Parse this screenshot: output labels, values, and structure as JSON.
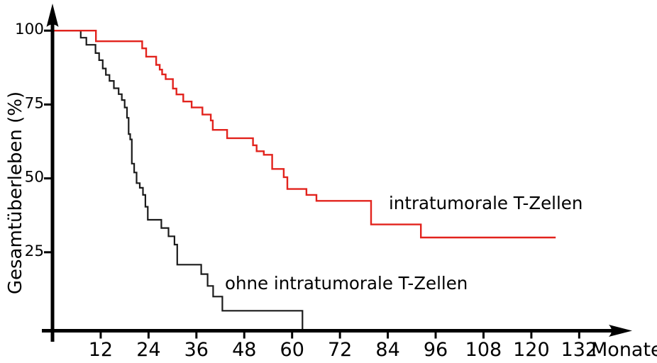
{
  "figure": {
    "background": "#ffffff",
    "axis_color": "#000000",
    "accent_red": "#e2231d"
  },
  "chart_data": {
    "type": "line",
    "subtype": "kaplan-meier-step-survival",
    "title": "",
    "xlabel": "Monate",
    "ylabel": "Gesamtüberleben (%)",
    "xlim": [
      0,
      145
    ],
    "ylim": [
      0,
      105
    ],
    "grid": false,
    "legend_position": "inline-text-annotations",
    "x_ticks": [
      12,
      24,
      36,
      48,
      60,
      72,
      84,
      96,
      108,
      120,
      132
    ],
    "y_ticks": [
      100,
      75,
      50,
      25
    ],
    "series": [
      {
        "name": "ohne intratumorale T-Zellen",
        "color": "#1b1b1b",
        "start": [
          0,
          100
        ],
        "end_month": 62.6,
        "drops": [
          [
            7.0,
            97.6
          ],
          [
            8.4,
            95.2
          ],
          [
            10.7,
            92.4
          ],
          [
            11.6,
            90.0
          ],
          [
            12.5,
            87.2
          ],
          [
            13.3,
            85.0
          ],
          [
            14.2,
            83.0
          ],
          [
            15.3,
            80.5
          ],
          [
            16.5,
            78.5
          ],
          [
            17.3,
            76.5
          ],
          [
            18.0,
            74.0
          ],
          [
            18.6,
            70.5
          ],
          [
            19.0,
            65.0
          ],
          [
            19.4,
            63.2
          ],
          [
            19.8,
            55.0
          ],
          [
            20.4,
            52.0
          ],
          [
            21.0,
            48.4
          ],
          [
            21.8,
            46.8
          ],
          [
            22.6,
            44.4
          ],
          [
            23.2,
            40.4
          ],
          [
            23.8,
            36.0
          ],
          [
            27.2,
            33.2
          ],
          [
            29.0,
            30.4
          ],
          [
            30.5,
            27.6
          ],
          [
            31.2,
            20.8
          ],
          [
            37.2,
            17.6
          ],
          [
            38.8,
            13.6
          ],
          [
            40.2,
            10.0
          ],
          [
            42.5,
            5.2
          ],
          [
            62.6,
            0.0
          ]
        ]
      },
      {
        "name": "intratumorale T-Zellen",
        "color": "#e2231d",
        "start": [
          0,
          100
        ],
        "end_month": 126.1,
        "drops": [
          [
            10.8,
            96.4
          ],
          [
            22.4,
            94.0
          ],
          [
            23.4,
            91.2
          ],
          [
            25.9,
            88.4
          ],
          [
            26.8,
            86.8
          ],
          [
            27.4,
            85.2
          ],
          [
            28.3,
            83.6
          ],
          [
            30.1,
            80.4
          ],
          [
            31.0,
            78.4
          ],
          [
            32.7,
            76.0
          ],
          [
            34.8,
            74.0
          ],
          [
            37.5,
            71.6
          ],
          [
            39.6,
            69.6
          ],
          [
            40.1,
            66.4
          ],
          [
            43.7,
            63.6
          ],
          [
            50.2,
            61.2
          ],
          [
            51.1,
            59.2
          ],
          [
            52.9,
            58.0
          ],
          [
            55.0,
            53.2
          ],
          [
            57.9,
            50.4
          ],
          [
            58.8,
            46.4
          ],
          [
            63.6,
            44.4
          ],
          [
            66.1,
            42.4
          ],
          [
            79.8,
            34.4
          ],
          [
            92.3,
            30.0
          ]
        ]
      }
    ],
    "annotations": [
      {
        "text": "intratumorale T-Zellen",
        "color": "#e2231d"
      },
      {
        "text": "ohne intratumorale T-Zellen",
        "color": "#e2231d"
      }
    ]
  }
}
